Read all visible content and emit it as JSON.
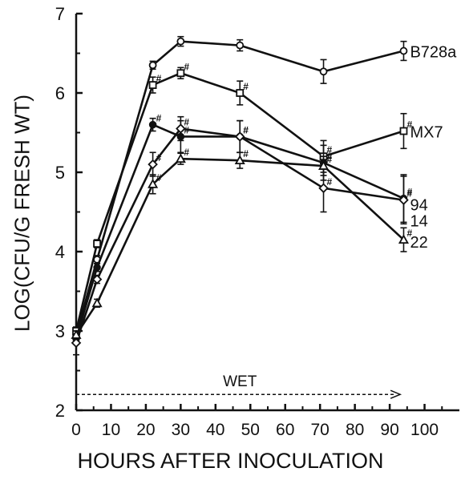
{
  "chart_data": {
    "type": "line",
    "title": "",
    "xlabel": "HOURS AFTER INOCULATION",
    "ylabel": "LOG(CFU/G FRESH WT)",
    "xlim": [
      0,
      110
    ],
    "ylim": [
      2,
      7
    ],
    "x_ticks": [
      0,
      10,
      20,
      30,
      40,
      50,
      60,
      70,
      80,
      90,
      100
    ],
    "y_ticks": [
      2,
      3,
      4,
      5,
      6,
      7
    ],
    "grid": false,
    "series": [
      {
        "name": "B728a",
        "marker": "circle",
        "x": [
          0,
          6,
          22,
          30,
          47,
          71,
          94
        ],
        "y": [
          2.95,
          3.9,
          6.35,
          6.65,
          6.6,
          6.27,
          6.53
        ],
        "err": [
          0.05,
          0.05,
          0.05,
          0.06,
          0.07,
          0.15,
          0.12
        ],
        "sig": [
          false,
          false,
          false,
          false,
          false,
          false,
          false
        ]
      },
      {
        "name": "MX7",
        "marker": "square",
        "x": [
          0,
          6,
          22,
          30,
          47,
          71,
          94
        ],
        "y": [
          3.0,
          4.1,
          6.1,
          6.25,
          6.0,
          5.2,
          5.52
        ],
        "err": [
          0.05,
          0.05,
          0.1,
          0.07,
          0.15,
          0.2,
          0.22
        ],
        "sig": [
          false,
          false,
          true,
          true,
          true,
          true,
          true
        ]
      },
      {
        "name": "94",
        "marker": "filled-circle",
        "x": [
          0,
          6,
          22,
          30,
          47,
          71,
          94
        ],
        "y": [
          2.9,
          3.8,
          5.6,
          5.45,
          5.45,
          5.12,
          4.67
        ],
        "err": [
          0.05,
          0.05,
          0.08,
          0.2,
          0.2,
          0.22,
          0.3
        ],
        "sig": [
          false,
          false,
          true,
          true,
          true,
          true,
          true
        ]
      },
      {
        "name": "14",
        "marker": "diamond",
        "x": [
          0,
          6,
          22,
          30,
          47,
          71,
          94
        ],
        "y": [
          2.85,
          3.65,
          5.1,
          5.55,
          5.45,
          4.8,
          4.65
        ],
        "err": [
          0.15,
          0.05,
          0.15,
          0.15,
          0.2,
          0.3,
          0.3
        ],
        "sig": [
          false,
          false,
          true,
          true,
          true,
          true,
          true
        ]
      },
      {
        "name": "22",
        "marker": "triangle",
        "x": [
          0,
          6,
          22,
          30,
          47,
          71,
          94
        ],
        "y": [
          2.95,
          3.35,
          4.85,
          5.17,
          5.15,
          5.08,
          4.15
        ],
        "err": [
          0.05,
          0.05,
          0.12,
          0.07,
          0.1,
          0.12,
          0.15
        ],
        "sig": [
          false,
          false,
          true,
          true,
          true,
          true,
          true
        ]
      }
    ],
    "significance_marker": "#",
    "annotation": {
      "label": "WET",
      "x_start": 0,
      "x_end": 93,
      "y": 2.2
    }
  }
}
